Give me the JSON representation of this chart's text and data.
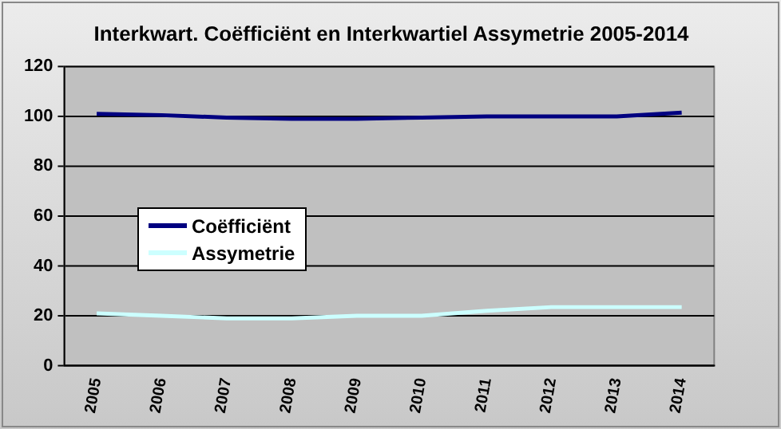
{
  "chart_data": {
    "type": "line",
    "title": "Interkwart. Coëfficiënt en Interkwartiel Assymetrie 2005-2014",
    "categories": [
      "2005",
      "2006",
      "2007",
      "2008",
      "2009",
      "2010",
      "2011",
      "2012",
      "2013",
      "2014"
    ],
    "series": [
      {
        "name": "Coëfficiënt",
        "color": "#000080",
        "values": [
          101,
          100.5,
          99.5,
          99,
          99,
          99.5,
          100,
          100,
          100,
          101.5
        ]
      },
      {
        "name": "Assymetrie",
        "color": "#ccffff",
        "values": [
          21,
          20,
          19,
          19,
          20,
          20,
          22,
          23.5,
          23.5,
          23.5
        ]
      }
    ],
    "ylim": [
      0,
      120
    ],
    "yticks": [
      0,
      20,
      40,
      60,
      80,
      100,
      120
    ],
    "grid": "y",
    "legend": "left",
    "marker": "none"
  }
}
